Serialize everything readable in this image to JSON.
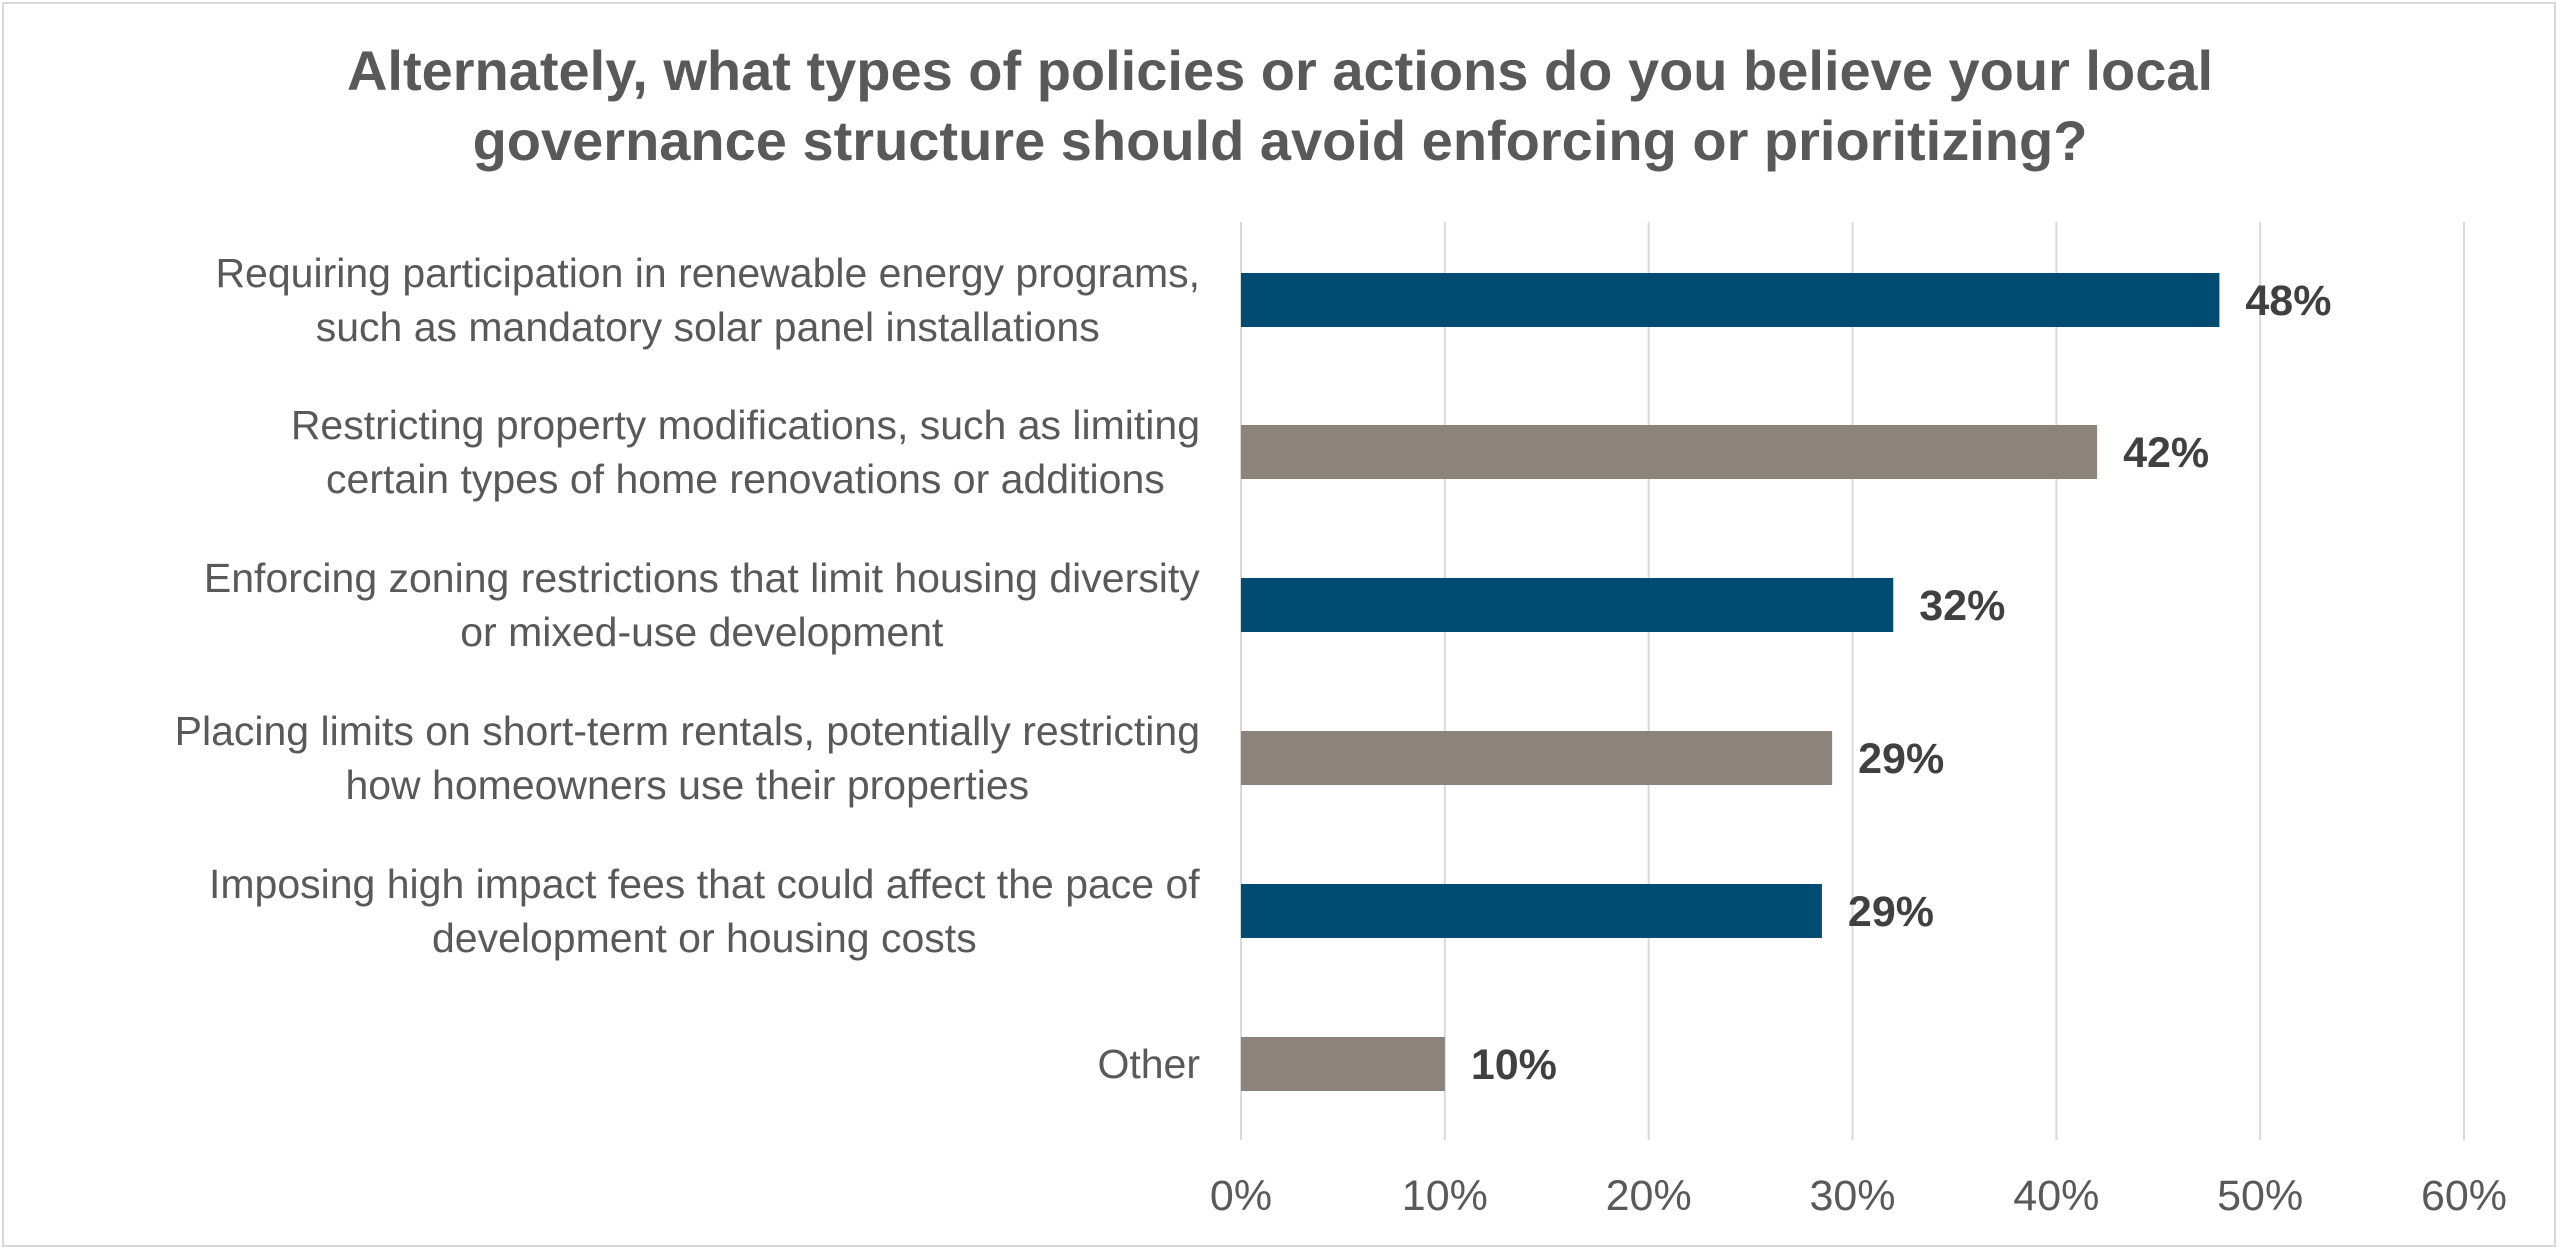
{
  "chart_data": {
    "type": "bar",
    "orientation": "horizontal",
    "title": "Alternately, what types of policies or actions do you believe your local\ngovernance structure should avoid enforcing or prioritizing?",
    "categories": [
      [
        "Requiring participation in renewable energy programs,",
        "such as mandatory solar panel installations"
      ],
      [
        "Restricting property modifications, such as limiting",
        "certain types of home renovations or additions"
      ],
      [
        "Enforcing zoning restrictions that limit housing diversity",
        "or mixed-use development"
      ],
      [
        "Placing limits on short-term rentals, potentially restricting",
        "how homeowners use their properties"
      ],
      [
        "Imposing high impact fees that could affect the pace of",
        "development or housing costs"
      ],
      [
        "Other"
      ]
    ],
    "values": [
      48,
      42,
      32,
      29,
      28.5,
      10
    ],
    "value_labels": [
      "48%",
      "42%",
      "32%",
      "29%",
      "29%",
      "10%"
    ],
    "bar_colors": [
      "#004b71",
      "#8c837a",
      "#004b71",
      "#8c837a",
      "#004b71",
      "#8c837a"
    ],
    "xlim": [
      0,
      60
    ],
    "xticks": [
      0,
      10,
      20,
      30,
      40,
      50,
      60
    ],
    "xtick_labels": [
      "0%",
      "10%",
      "20%",
      "30%",
      "40%",
      "50%",
      "60%"
    ],
    "grid": true,
    "legend": "none",
    "colors": {
      "primary": "#004b71",
      "secondary": "#8c837a",
      "grid": "#d9d9d9",
      "text": "#595959",
      "value_text": "#404040"
    }
  }
}
